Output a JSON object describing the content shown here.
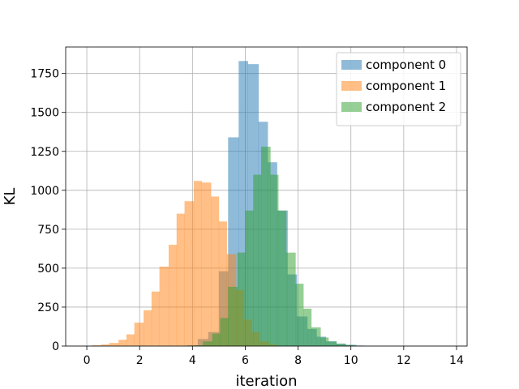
{
  "chart_data": {
    "type": "histogram",
    "xlabel": "iteration",
    "ylabel": "KL",
    "xlim": [
      -0.8,
      14.4
    ],
    "ylim": [
      0,
      1920
    ],
    "xticks": [
      0,
      2,
      4,
      6,
      8,
      10,
      12,
      14
    ],
    "yticks": [
      0,
      250,
      500,
      750,
      1000,
      1250,
      1500,
      1750
    ],
    "grid": true,
    "legend_position": "top-right",
    "opacity": 0.5,
    "series": [
      {
        "name": "component 0",
        "color": "#1f77b4",
        "bins": [
          [
            3.8,
            4.2,
            5
          ],
          [
            4.2,
            4.6,
            45
          ],
          [
            4.6,
            5.0,
            90
          ],
          [
            5.0,
            5.35,
            480
          ],
          [
            5.35,
            5.75,
            1340
          ],
          [
            5.75,
            6.1,
            1830
          ],
          [
            6.1,
            6.5,
            1810
          ],
          [
            6.5,
            6.85,
            1440
          ],
          [
            6.85,
            7.2,
            1180
          ],
          [
            7.2,
            7.6,
            870
          ],
          [
            7.6,
            7.95,
            460
          ],
          [
            7.95,
            8.35,
            190
          ],
          [
            8.35,
            8.7,
            110
          ],
          [
            8.7,
            9.05,
            60
          ],
          [
            9.05,
            9.45,
            30
          ],
          [
            9.45,
            9.8,
            15
          ],
          [
            9.8,
            10.2,
            8
          ],
          [
            10.2,
            10.55,
            3
          ]
        ]
      },
      {
        "name": "component 1",
        "color": "#ff7f0e",
        "bins": [
          [
            0.2,
            0.55,
            5
          ],
          [
            0.55,
            0.85,
            10
          ],
          [
            0.85,
            1.2,
            20
          ],
          [
            1.2,
            1.5,
            40
          ],
          [
            1.5,
            1.8,
            75
          ],
          [
            1.8,
            2.15,
            150
          ],
          [
            2.15,
            2.45,
            230
          ],
          [
            2.45,
            2.75,
            350
          ],
          [
            2.75,
            3.1,
            510
          ],
          [
            3.1,
            3.4,
            650
          ],
          [
            3.4,
            3.7,
            850
          ],
          [
            3.7,
            4.05,
            930
          ],
          [
            4.05,
            4.35,
            1060
          ],
          [
            4.35,
            4.7,
            1050
          ],
          [
            4.7,
            5.0,
            960
          ],
          [
            5.0,
            5.3,
            800
          ],
          [
            5.3,
            5.65,
            590
          ],
          [
            5.65,
            5.95,
            360
          ],
          [
            5.95,
            6.25,
            170
          ],
          [
            6.25,
            6.55,
            90
          ],
          [
            6.55,
            6.9,
            30
          ],
          [
            6.9,
            7.2,
            10
          ]
        ]
      },
      {
        "name": "component 2",
        "color": "#2ca02c",
        "bins": [
          [
            4.1,
            4.4,
            5
          ],
          [
            4.4,
            4.75,
            30
          ],
          [
            4.75,
            5.05,
            80
          ],
          [
            5.05,
            5.35,
            180
          ],
          [
            5.35,
            5.7,
            380
          ],
          [
            5.7,
            6.0,
            600
          ],
          [
            6.0,
            6.3,
            870
          ],
          [
            6.3,
            6.6,
            1100
          ],
          [
            6.6,
            6.95,
            1280
          ],
          [
            6.95,
            7.25,
            1100
          ],
          [
            7.25,
            7.55,
            870
          ],
          [
            7.55,
            7.9,
            600
          ],
          [
            7.9,
            8.2,
            400
          ],
          [
            8.2,
            8.5,
            240
          ],
          [
            8.5,
            8.85,
            120
          ],
          [
            8.85,
            9.15,
            55
          ],
          [
            9.15,
            9.45,
            30
          ],
          [
            9.45,
            9.8,
            15
          ],
          [
            9.8,
            10.1,
            7
          ],
          [
            10.1,
            10.4,
            3
          ]
        ]
      }
    ]
  }
}
